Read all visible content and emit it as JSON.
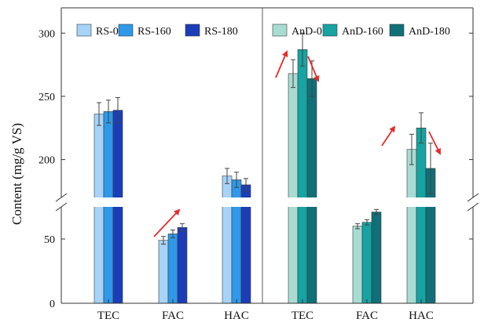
{
  "chart_data": {
    "type": "bar",
    "title": "",
    "xlabel": "",
    "ylabel": "Content (mg/g VS)",
    "axis_break": {
      "lower_range": [
        0,
        75
      ],
      "upper_range": [
        170,
        320
      ]
    },
    "y_ticks_lower": [
      0,
      50
    ],
    "y_ticks_upper": [
      200,
      250,
      300
    ],
    "grid": false,
    "legend_position": "top",
    "panels": [
      {
        "name": "RS",
        "categories": [
          "TEC",
          "FAC",
          "HAC"
        ],
        "series": [
          {
            "name": "RS-0",
            "color": "#a6d3f7",
            "values": [
              236,
              49,
              187
            ],
            "errors": [
              9,
              3,
              6
            ]
          },
          {
            "name": "RS-160",
            "color": "#2f98e8",
            "values": [
              238,
              54,
              184
            ],
            "errors": [
              9,
              3,
              6
            ]
          },
          {
            "name": "RS-180",
            "color": "#1c3db8",
            "values": [
              239,
              59,
              180
            ],
            "errors": [
              10,
              3,
              5
            ]
          }
        ],
        "trend_arrows": [
          {
            "category": "FAC",
            "direction": "up"
          }
        ]
      },
      {
        "name": "AnD",
        "categories": [
          "TEC",
          "FAC",
          "HAC"
        ],
        "series": [
          {
            "name": "AnD-0",
            "color": "#a8dcd2",
            "values": [
              268,
              60,
              208
            ],
            "errors": [
              11,
              2,
              12
            ]
          },
          {
            "name": "AnD-160",
            "color": "#16a3a1",
            "values": [
              287,
              63,
              225
            ],
            "errors": [
              13,
              2,
              12
            ]
          },
          {
            "name": "AnD-180",
            "color": "#116f78",
            "values": [
              264,
              71,
              193
            ],
            "errors": [
              14,
              2,
              20
            ]
          }
        ],
        "trend_arrows": [
          {
            "category": "TEC",
            "direction": "up"
          },
          {
            "category": "TEC",
            "direction": "down"
          },
          {
            "category": "HAC",
            "direction": "up"
          },
          {
            "category": "HAC",
            "direction": "down"
          }
        ]
      }
    ]
  }
}
